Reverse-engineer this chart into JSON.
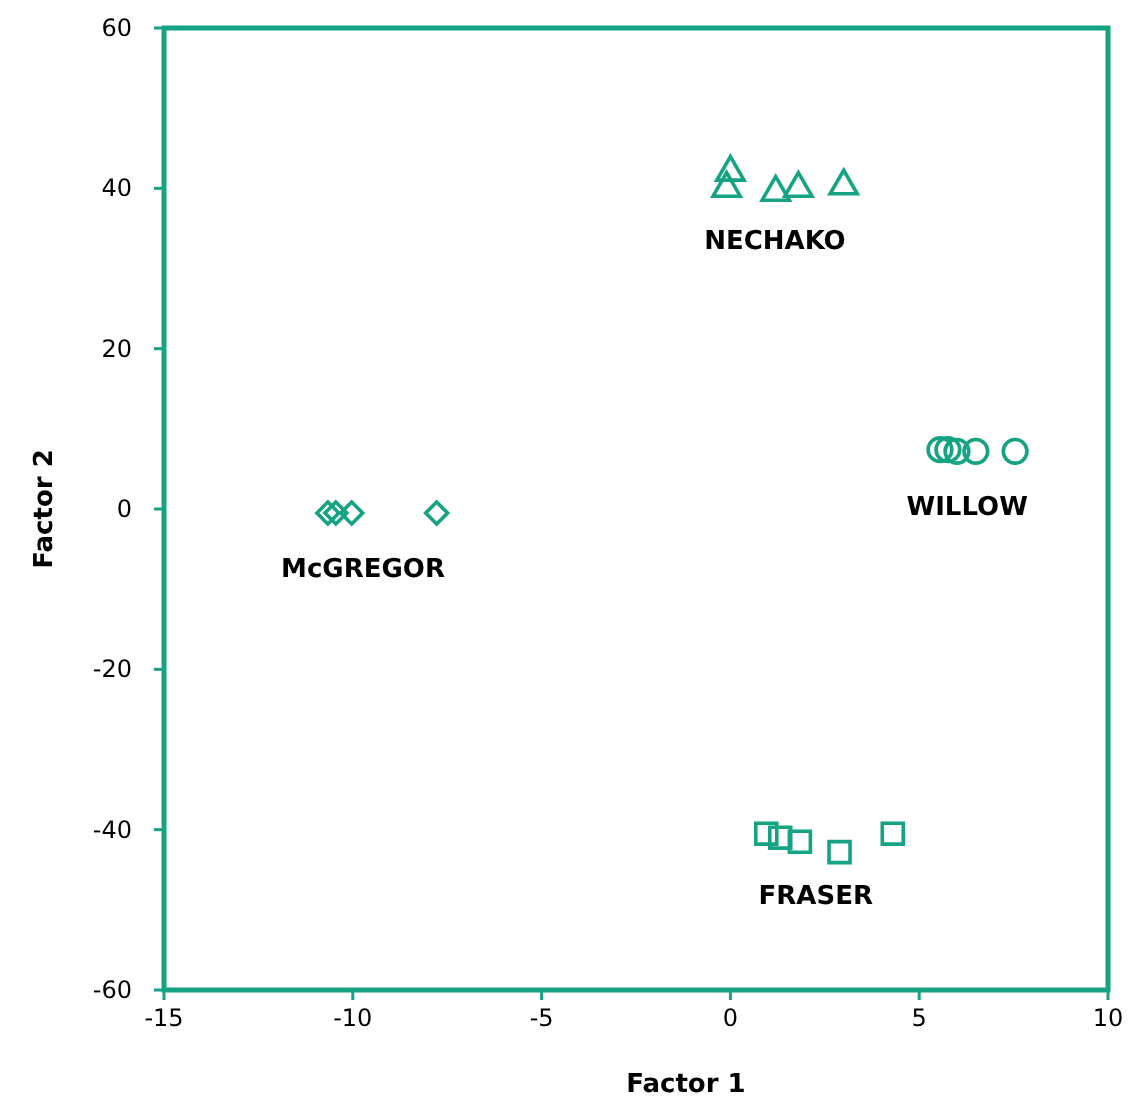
{
  "chart_data": {
    "type": "scatter",
    "xlabel": "Factor 1",
    "ylabel": "Factor 2",
    "xlim": [
      -15,
      10
    ],
    "xticks": [
      -15,
      -10,
      -5,
      0,
      5,
      10
    ],
    "ylim": [
      -60,
      60
    ],
    "yticks": [
      -60,
      -40,
      -20,
      0,
      20,
      40,
      60
    ],
    "grid": false,
    "series": [
      {
        "name": "NECHAKO",
        "color": "#16a383",
        "marker": "triangle",
        "x": [
          0.0,
          -0.1,
          1.2,
          1.8,
          3.0
        ],
        "values": [
          42,
          40,
          39.5,
          40,
          40.3
        ]
      },
      {
        "name": "WILLOW",
        "color": "#16a383",
        "marker": "circle",
        "x": [
          5.55,
          5.76,
          6.0,
          6.5,
          7.54
        ],
        "values": [
          7.4,
          7.4,
          7.2,
          7.2,
          7.2
        ]
      },
      {
        "name": "McGREGOR",
        "color": "#16a383",
        "marker": "diamond",
        "x": [
          -10.66,
          -10.45,
          -10.03,
          -7.78
        ],
        "values": [
          -0.5,
          -0.5,
          -0.5,
          -0.5
        ]
      },
      {
        "name": "FRASER",
        "color": "#16a383",
        "marker": "square",
        "x": [
          0.95,
          1.32,
          1.84,
          2.89,
          4.3
        ],
        "values": [
          -40.5,
          -41.0,
          -41.5,
          -42.8,
          -40.5
        ]
      }
    ]
  }
}
